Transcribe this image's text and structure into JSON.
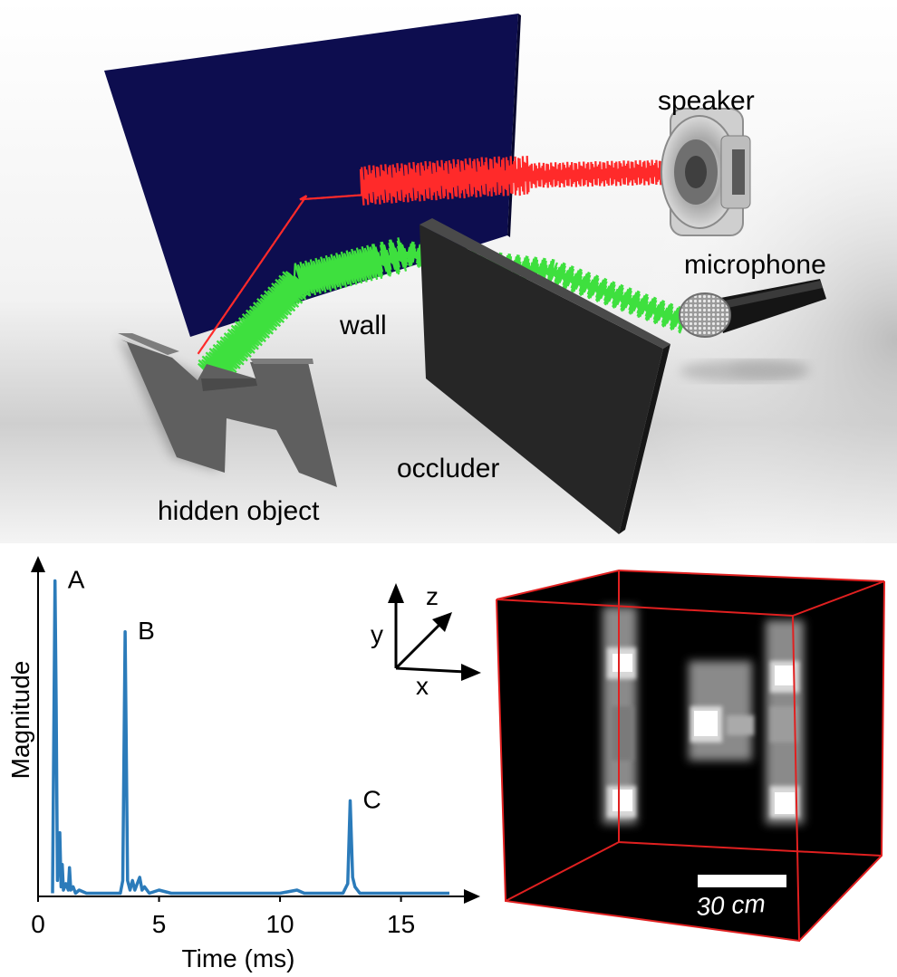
{
  "scene": {
    "labels": {
      "speaker": "speaker",
      "microphone": "microphone",
      "wall": "wall",
      "occluder": "occluder",
      "hidden_object": "hidden object"
    },
    "colors": {
      "wall": "#0d0d4f",
      "occluder": "#262626",
      "hidden_object": "#5f5f5f",
      "emitted_wave": "#ff2a2a",
      "received_wave": "#3ee03e"
    }
  },
  "axes_icon": {
    "x": "x",
    "y": "y",
    "z": "z"
  },
  "chart_data": {
    "type": "line",
    "xlabel": "Time (ms)",
    "ylabel": "Magnitude",
    "xlim": [
      0,
      17
    ],
    "ylim": [
      0,
      1
    ],
    "x_ticks": [
      "0",
      "5",
      "10",
      "15"
    ],
    "line_color": "#2b7bba",
    "series": [
      {
        "x": [
          0.6,
          0.7,
          0.75,
          0.8,
          0.9,
          0.95,
          1.0,
          1.05,
          1.15,
          1.25,
          1.3,
          1.35,
          1.45,
          1.55,
          1.7,
          2.0,
          2.5,
          3.0,
          3.4,
          3.5,
          3.6,
          3.7,
          3.8,
          3.9,
          4.0,
          4.2,
          4.3,
          4.4,
          4.6,
          5.0,
          5.5,
          6.0,
          7.0,
          8.0,
          9.0,
          10.0,
          10.7,
          11.0,
          12.0,
          12.6,
          12.8,
          12.9,
          13.0,
          13.1,
          13.2,
          13.3,
          13.5,
          14.0,
          15.0,
          16.0,
          17.0
        ],
        "y": [
          0.01,
          0.99,
          0.6,
          0.05,
          0.2,
          0.03,
          0.1,
          0.02,
          0.04,
          0.02,
          0.09,
          0.02,
          0.03,
          0.01,
          0.02,
          0.01,
          0.01,
          0.01,
          0.01,
          0.05,
          0.83,
          0.05,
          0.02,
          0.05,
          0.02,
          0.06,
          0.02,
          0.03,
          0.01,
          0.02,
          0.01,
          0.01,
          0.01,
          0.01,
          0.01,
          0.01,
          0.02,
          0.01,
          0.01,
          0.01,
          0.04,
          0.3,
          0.06,
          0.03,
          0.02,
          0.01,
          0.01,
          0.01,
          0.01,
          0.01,
          0.01
        ]
      }
    ],
    "annotations": [
      {
        "text": "A",
        "x": 0.7,
        "y": 0.99
      },
      {
        "text": "B",
        "x": 3.6,
        "y": 0.83
      },
      {
        "text": "C",
        "x": 12.9,
        "y": 0.3
      }
    ]
  },
  "reconstruction": {
    "scale_label": "30 cm",
    "box_color": "#e02020"
  }
}
